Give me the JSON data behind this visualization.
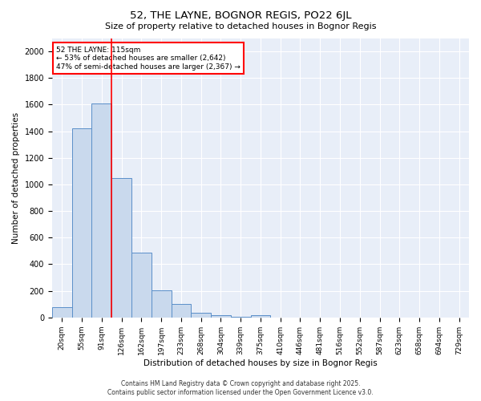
{
  "title1": "52, THE LAYNE, BOGNOR REGIS, PO22 6JL",
  "title2": "Size of property relative to detached houses in Bognor Regis",
  "xlabel": "Distribution of detached houses by size in Bognor Regis",
  "ylabel": "Number of detached properties",
  "bar_labels": [
    "20sqm",
    "55sqm",
    "91sqm",
    "126sqm",
    "162sqm",
    "197sqm",
    "233sqm",
    "268sqm",
    "304sqm",
    "339sqm",
    "375sqm",
    "410sqm",
    "446sqm",
    "481sqm",
    "516sqm",
    "552sqm",
    "587sqm",
    "623sqm",
    "658sqm",
    "694sqm",
    "729sqm"
  ],
  "bar_values": [
    75,
    1420,
    1610,
    1050,
    490,
    205,
    100,
    35,
    20,
    5,
    15,
    0,
    0,
    0,
    0,
    0,
    0,
    0,
    0,
    0,
    0
  ],
  "bar_color": "#c9d9ed",
  "bar_edge_color": "#5b8fc9",
  "vline_color": "red",
  "vline_position": 2.5,
  "annotation_text": "52 THE LAYNE: 115sqm\n← 53% of detached houses are smaller (2,642)\n47% of semi-detached houses are larger (2,367) →",
  "annotation_box_color": "red",
  "annotation_bg": "white",
  "ylim": [
    0,
    2100
  ],
  "yticks": [
    0,
    200,
    400,
    600,
    800,
    1000,
    1200,
    1400,
    1600,
    1800,
    2000
  ],
  "background_color": "#e8eef8",
  "grid_color": "white",
  "footer1": "Contains HM Land Registry data © Crown copyright and database right 2025.",
  "footer2": "Contains public sector information licensed under the Open Government Licence v3.0."
}
